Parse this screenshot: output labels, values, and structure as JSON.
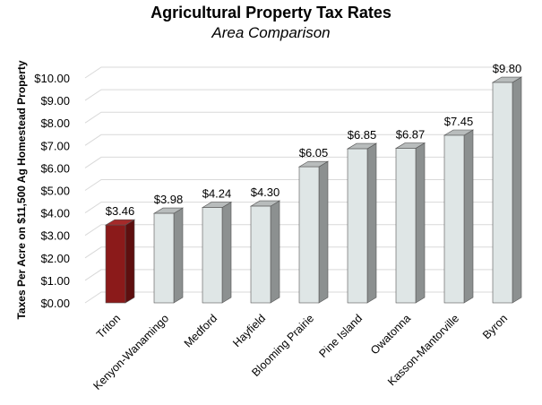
{
  "chart_data": {
    "type": "bar",
    "title": "Agricultural Property Tax Rates",
    "subtitle": "Area Comparison",
    "xlabel": "",
    "ylabel": "Taxes Per Acre on $11,500 Ag Homestead Property",
    "ylim": [
      0,
      10
    ],
    "yticks": [
      "$0.00",
      "$1.00",
      "$2.00",
      "$3.00",
      "$4.00",
      "$5.00",
      "$6.00",
      "$7.00",
      "$8.00",
      "$9.00",
      "$10.00"
    ],
    "categories": [
      "Triton",
      "Kenyon-Wanamingo",
      "Medford",
      "Hayfield",
      "Blooming Prairie",
      "Pine Island",
      "Owatonna",
      "Kasson-Mantorville",
      "Byron"
    ],
    "values": [
      3.46,
      3.98,
      4.24,
      4.3,
      6.05,
      6.85,
      6.87,
      7.45,
      9.8
    ],
    "value_labels": [
      "$3.46",
      "$3.98",
      "$4.24",
      "$4.30",
      "$6.05",
      "$6.85",
      "$6.87",
      "$7.45",
      "$9.80"
    ],
    "highlight_index": 0,
    "colors": {
      "highlight_front": "#8b1a1a",
      "highlight_side": "#5e0f0f",
      "highlight_top": "#a52a2a",
      "bar_front": "#dfe6e6",
      "bar_side": "#8c9090",
      "bar_top": "#b8bcbc",
      "grid": "#d9d9d9"
    },
    "grid": true,
    "legend": "none"
  }
}
